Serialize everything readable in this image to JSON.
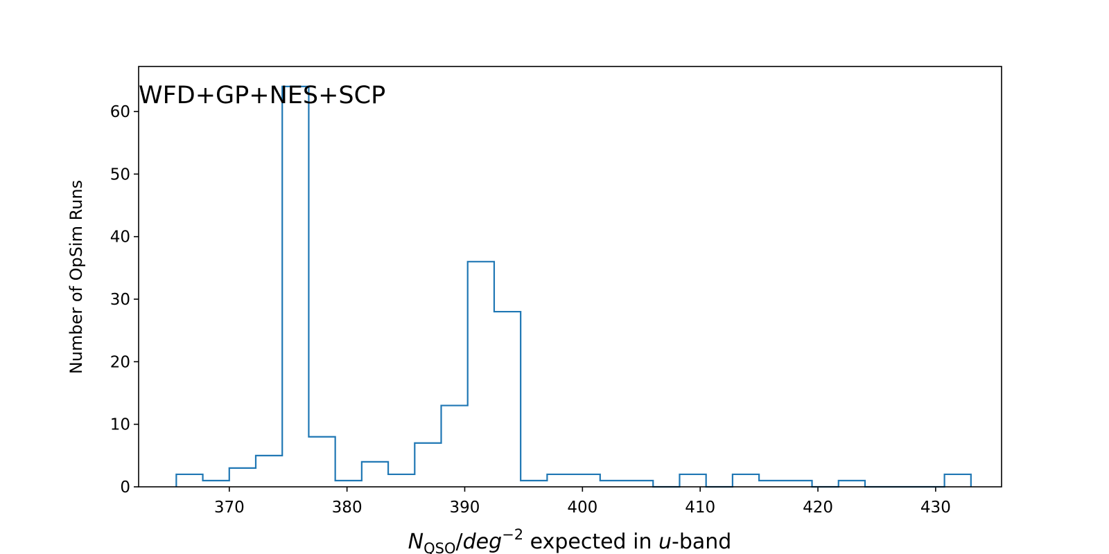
{
  "chart_data": {
    "type": "histogram",
    "annotation": "WFD+GP+NES+SCP",
    "ylabel": "Number of OpSim Runs",
    "xlabel": {
      "symbol": "N",
      "subscript": "QSO",
      "unit": "deg",
      "exponent": "−2",
      "middle": " expected in ",
      "band": "u",
      "suffix": "-band"
    },
    "xlim": [
      362.3,
      435.6
    ],
    "ylim": [
      0,
      67.2
    ],
    "x_ticks": [
      370,
      380,
      390,
      400,
      410,
      420,
      430
    ],
    "y_ticks": [
      0,
      10,
      20,
      30,
      40,
      50,
      60
    ],
    "line_color": "#1f77b4",
    "bin_edges": [
      365.5,
      367.75,
      370.0,
      372.25,
      374.5,
      376.75,
      379.0,
      381.25,
      383.5,
      385.75,
      388.0,
      390.25,
      392.5,
      394.75,
      397.0,
      399.25,
      401.5,
      403.75,
      406.0,
      408.25,
      410.5,
      412.75,
      415.0,
      417.25,
      419.5,
      421.75,
      424.0,
      426.25,
      428.5,
      430.75,
      433.0
    ],
    "counts": [
      2,
      1,
      3,
      5,
      64,
      8,
      1,
      4,
      2,
      7,
      13,
      36,
      28,
      1,
      2,
      2,
      1,
      1,
      0,
      2,
      0,
      2,
      1,
      1,
      0,
      1,
      0,
      0,
      0,
      2
    ]
  }
}
